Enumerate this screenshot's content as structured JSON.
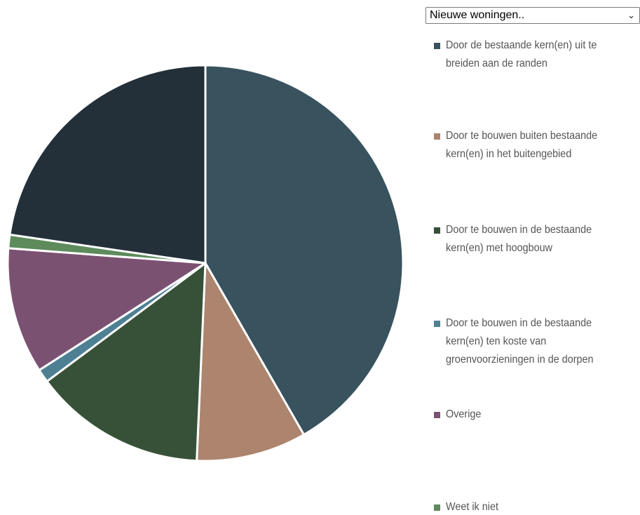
{
  "dropdown": {
    "selected": "Nieuwe woningen.."
  },
  "colors": {
    "slice1": "#38525e",
    "slice2": "#ad846d",
    "slice3": "#365138",
    "slice4": "#4e8094",
    "slice5": "#7b5172",
    "slice6": "#5d8b5c",
    "slice7": "#233039"
  },
  "chart_data": {
    "type": "pie",
    "slices": [
      {
        "label": "Door de bestaande kern(en) uit te breiden aan de randen",
        "value": 41.7,
        "color": "#38525e"
      },
      {
        "label": "Door te bouwen buiten bestaande kern(en) in het buitengebied",
        "value": 9.0,
        "color": "#ad846d"
      },
      {
        "label": "Door te bouwen in de bestaande kern(en) met hoogbouw",
        "value": 14.1,
        "color": "#365138"
      },
      {
        "label": "Door te bouwen in de bestaande kern(en) ten koste van groenvoorzieningen in de dorpen",
        "value": 1.1,
        "color": "#4e8094"
      },
      {
        "label": "Overige",
        "value": 10.3,
        "color": "#7b5172"
      },
      {
        "label": "Weet ik niet",
        "value": 1.1,
        "color": "#5d8b5c"
      },
      {
        "label": "",
        "value": 22.7,
        "color": "#233039"
      }
    ],
    "legend_position": "right",
    "start_angle_deg": 0
  }
}
